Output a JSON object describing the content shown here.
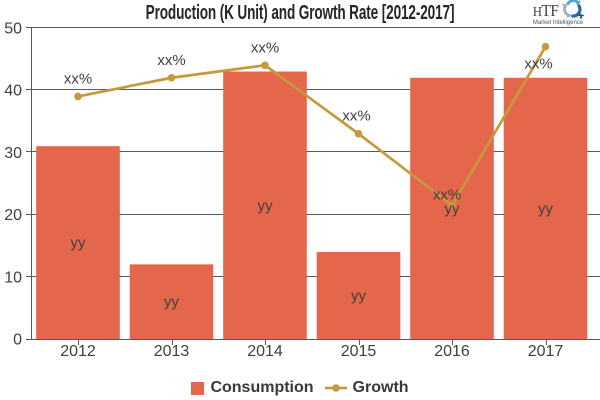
{
  "chart_data": {
    "type": "bar+line",
    "title": "Production (K Unit) and Growth Rate [2012-2017]",
    "categories": [
      "2012",
      "2013",
      "2014",
      "2015",
      "2016",
      "2017"
    ],
    "series": [
      {
        "name": "Consumption",
        "type": "bar",
        "values": [
          31,
          12,
          43,
          14,
          42,
          42
        ],
        "data_label": "yy",
        "color": "#e4664b"
      },
      {
        "name": "Growth",
        "type": "line",
        "values": [
          39,
          42,
          44,
          33,
          21.5,
          47
        ],
        "data_label": "xx%",
        "color": "#c8983e"
      }
    ],
    "ylim": [
      0,
      50
    ],
    "y_ticks": [
      0,
      10,
      20,
      30,
      40,
      50
    ],
    "grid": true,
    "legend_position": "bottom"
  },
  "colors": {
    "axis": "#595959",
    "grid": "#595959",
    "tick_text": "#3f3f3f",
    "data_label_text": "#404040",
    "title_text": "#262626",
    "legend_text": "#383838"
  },
  "logo": {
    "wordmark": "HTF",
    "tagline": "Market Intelligence"
  }
}
